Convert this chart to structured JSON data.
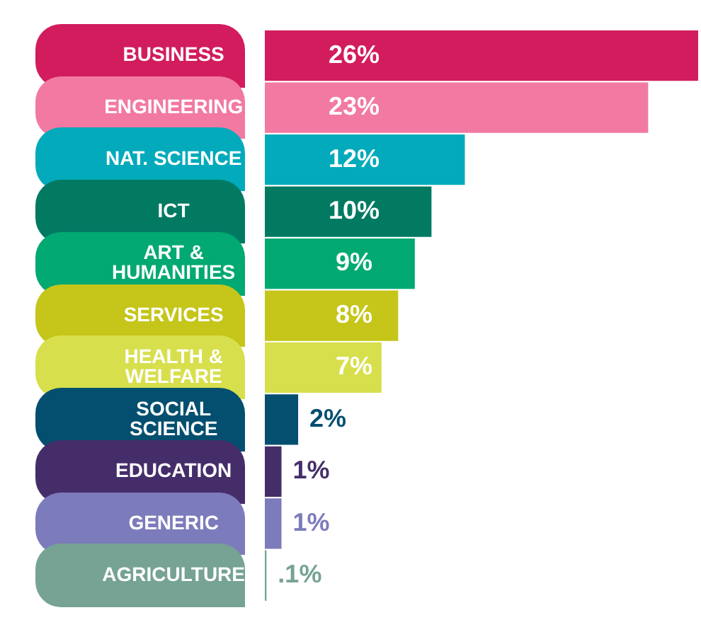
{
  "chart_data": {
    "type": "bar",
    "orientation": "horizontal",
    "categories": [
      "BUSINESS",
      "ENGINEERING",
      "NAT. SCIENCE",
      "ICT",
      "ART & HUMANITIES",
      "SERVICES",
      "HEALTH & WELFARE",
      "SOCIAL SCIENCE",
      "EDUCATION",
      "GENERIC",
      "AGRICULTURE"
    ],
    "values": [
      26,
      23,
      12,
      10,
      9,
      8,
      7,
      2,
      1,
      1,
      0.1
    ],
    "value_labels": [
      "26%",
      "23%",
      "12%",
      "10%",
      "9%",
      "8%",
      "7%",
      "2%",
      "1%",
      "1%",
      ".1%"
    ],
    "colors": [
      "#d21c5e",
      "#f279a1",
      "#02aabb",
      "#027a62",
      "#02a972",
      "#c5c51a",
      "#d7df4c",
      "#044f6f",
      "#452d6a",
      "#7c7bbb",
      "#76a393"
    ],
    "grid": false,
    "legend": false
  }
}
